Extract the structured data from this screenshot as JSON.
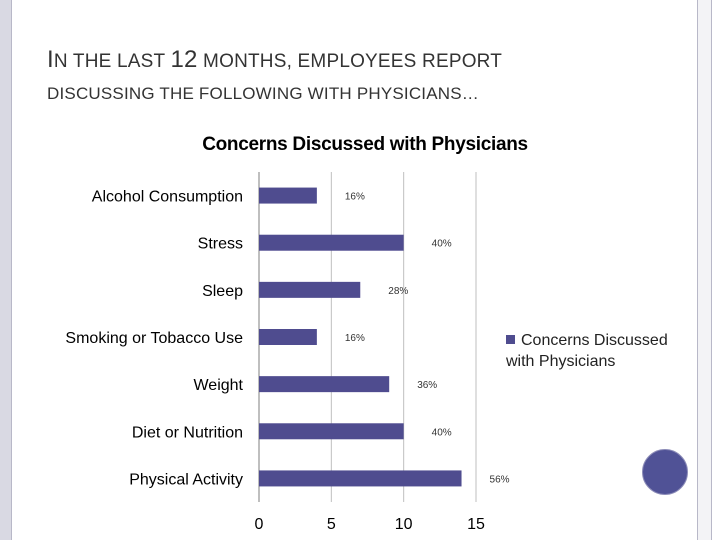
{
  "slide": {
    "title_line1_a": "I",
    "title_line1_b": "N THE LAST ",
    "title_line1_c": "12",
    "title_line1_d": " MONTHS, EMPLOYEES REPORT",
    "title_line2": "DISCUSSING THE FOLLOWING WITH PHYSICIANS…"
  },
  "colors": {
    "bar": "#4f4c8f",
    "accent_circle": "#505296"
  },
  "chart_data": {
    "type": "bar",
    "orientation": "horizontal",
    "title": "Concerns Discussed with Physicians",
    "categories": [
      "Alcohol Consumption",
      "Stress",
      "Sleep",
      "Smoking or Tobacco Use",
      "Weight",
      "Diet or Nutrition",
      "Physical Activity"
    ],
    "series": [
      {
        "name": "Concerns Discussed with Physicians",
        "values": [
          4,
          10,
          7,
          4,
          9,
          10,
          14
        ],
        "data_labels": [
          "16%",
          "40%",
          "28%",
          "16%",
          "36%",
          "40%",
          "56%"
        ]
      }
    ],
    "xlim": [
      0,
      15
    ],
    "xticks": [
      "0",
      "5",
      "10",
      "15"
    ],
    "grid": "vertical major gridlines",
    "legend": {
      "placement": "right",
      "label_line1": "Concerns Discussed",
      "label_line2": "with Physicians"
    }
  }
}
